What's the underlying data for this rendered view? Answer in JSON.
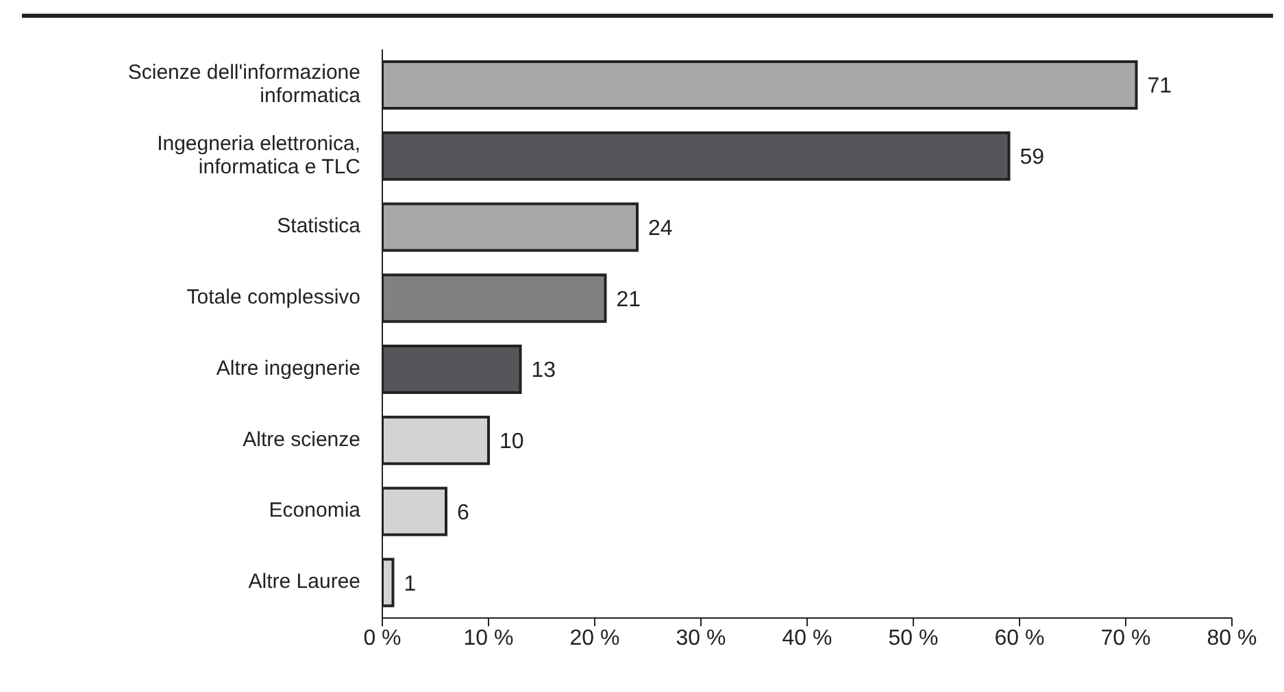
{
  "chart_data": {
    "type": "bar",
    "orientation": "horizontal",
    "categories": [
      "Scienze dell'informazione informatica",
      "Ingegneria elettronica, informatica e TLC",
      "Statistica",
      "Totale complessivo",
      "Altre ingegnerie",
      "Altre scienze",
      "Economia",
      "Altre Lauree"
    ],
    "values": [
      71,
      59,
      24,
      21,
      13,
      10,
      6,
      1
    ],
    "colors": [
      "#a7a8aa",
      "#555659",
      "#a7a8aa",
      "#808183",
      "#555659",
      "#d2d3d5",
      "#d2d3d5",
      "#d2d3d5"
    ],
    "xlim": [
      0,
      80
    ],
    "xticks": [
      {
        "value": 0,
        "label": "0 %"
      },
      {
        "value": 10,
        "label": "10 %"
      },
      {
        "value": 20,
        "label": "20 %"
      },
      {
        "value": 30,
        "label": "30 %"
      },
      {
        "value": 40,
        "label": "40 %"
      },
      {
        "value": 50,
        "label": "50 %"
      },
      {
        "value": 60,
        "label": "60 %"
      },
      {
        "value": 70,
        "label": "70 %"
      },
      {
        "value": 80,
        "label": "80 %"
      }
    ],
    "data_labels": true,
    "grid": false,
    "legend": false
  }
}
